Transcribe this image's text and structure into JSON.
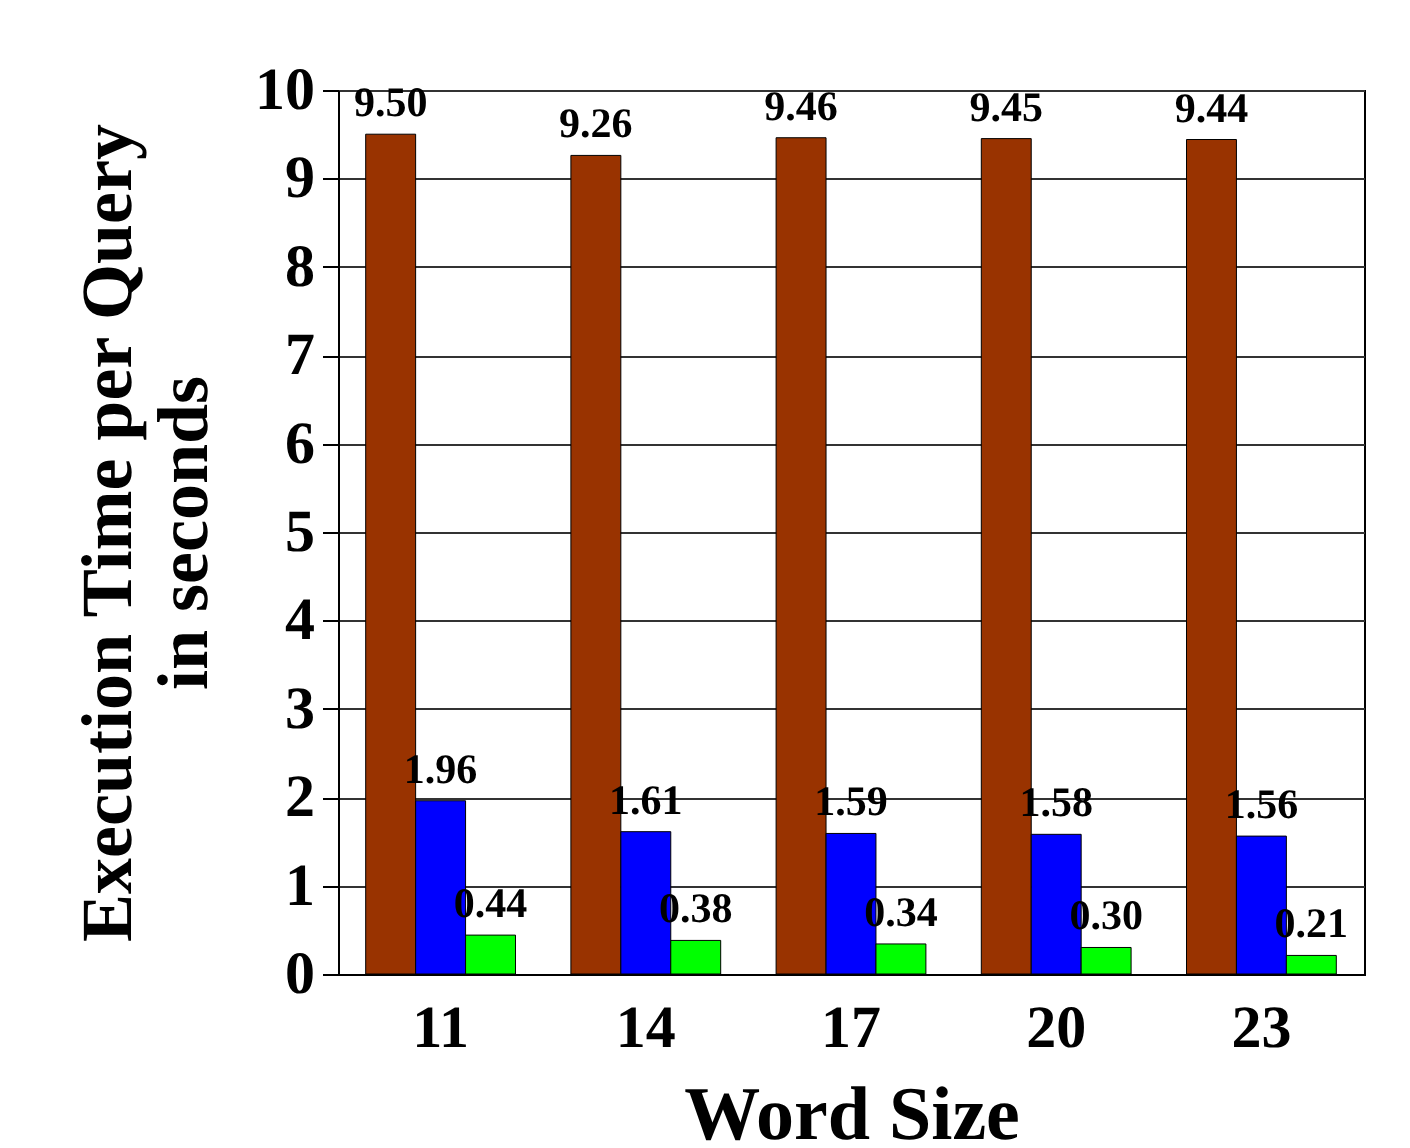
{
  "chart_data": {
    "type": "bar",
    "xlabel": "Word Size",
    "ylabel": "Execution Time per Query\nin seconds",
    "categories": [
      "11",
      "14",
      "17",
      "20",
      "23"
    ],
    "series": [
      {
        "color": "#993300",
        "values": [
          9.5,
          9.26,
          9.46,
          9.45,
          9.44
        ],
        "value_labels": [
          "9.50",
          "9.26",
          "9.46",
          "9.45",
          "9.44"
        ]
      },
      {
        "color": "#0000ff",
        "values": [
          1.96,
          1.61,
          1.59,
          1.58,
          1.56
        ],
        "value_labels": [
          "1.96",
          "1.61",
          "1.59",
          "1.58",
          "1.56"
        ]
      },
      {
        "color": "#00ff00",
        "values": [
          0.44,
          0.38,
          0.34,
          0.3,
          0.21
        ],
        "value_labels": [
          "0.44",
          "0.38",
          "0.34",
          "0.30",
          "0.21"
        ]
      }
    ],
    "ylim": [
      0,
      10
    ],
    "yticks": [
      0,
      1,
      2,
      3,
      4,
      5,
      6,
      7,
      8,
      9,
      10
    ],
    "grid": "y"
  }
}
